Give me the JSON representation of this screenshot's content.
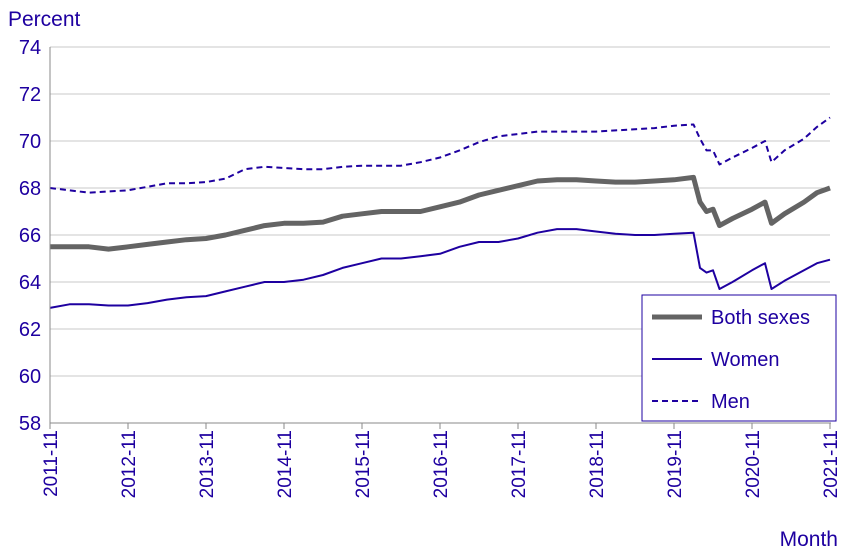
{
  "chart_data": {
    "type": "line",
    "ylabel": "Percent",
    "xlabel": "Month",
    "ylim": [
      58,
      74
    ],
    "yticks": [
      "58",
      "60",
      "62",
      "64",
      "66",
      "68",
      "70",
      "72",
      "74"
    ],
    "xlim": [
      "2011-11",
      "2021-11"
    ],
    "xticks": [
      "2011-11",
      "2012-11",
      "2013-11",
      "2014-11",
      "2015-11",
      "2016-11",
      "2017-11",
      "2018-11",
      "2019-11",
      "2020-11",
      "2021-11"
    ],
    "grid": "horizontal",
    "legend_position": "bottom-right",
    "series": [
      {
        "name": "Both sexes",
        "color": "#646464",
        "style": "solid-thick",
        "points": [
          [
            "2011-11",
            65.5
          ],
          [
            "2012-02",
            65.5
          ],
          [
            "2012-05",
            65.5
          ],
          [
            "2012-08",
            65.4
          ],
          [
            "2012-11",
            65.5
          ],
          [
            "2013-02",
            65.6
          ],
          [
            "2013-05",
            65.7
          ],
          [
            "2013-08",
            65.8
          ],
          [
            "2013-11",
            65.85
          ],
          [
            "2014-02",
            66.0
          ],
          [
            "2014-05",
            66.2
          ],
          [
            "2014-08",
            66.4
          ],
          [
            "2014-11",
            66.5
          ],
          [
            "2015-02",
            66.5
          ],
          [
            "2015-05",
            66.55
          ],
          [
            "2015-08",
            66.8
          ],
          [
            "2015-11",
            66.9
          ],
          [
            "2016-02",
            67.0
          ],
          [
            "2016-05",
            67.0
          ],
          [
            "2016-08",
            67.0
          ],
          [
            "2016-11",
            67.2
          ],
          [
            "2017-02",
            67.4
          ],
          [
            "2017-05",
            67.7
          ],
          [
            "2017-08",
            67.9
          ],
          [
            "2017-11",
            68.1
          ],
          [
            "2018-02",
            68.3
          ],
          [
            "2018-05",
            68.35
          ],
          [
            "2018-08",
            68.35
          ],
          [
            "2018-11",
            68.3
          ],
          [
            "2019-02",
            68.25
          ],
          [
            "2019-05",
            68.25
          ],
          [
            "2019-08",
            68.3
          ],
          [
            "2019-11",
            68.35
          ],
          [
            "2020-02",
            68.45
          ],
          [
            "2020-03",
            67.4
          ],
          [
            "2020-04",
            67.0
          ],
          [
            "2020-05",
            67.1
          ],
          [
            "2020-06",
            66.4
          ],
          [
            "2020-08",
            66.7
          ],
          [
            "2020-11",
            67.1
          ],
          [
            "2021-01",
            67.4
          ],
          [
            "2021-02",
            66.5
          ],
          [
            "2021-04",
            66.9
          ],
          [
            "2021-07",
            67.4
          ],
          [
            "2021-09",
            67.8
          ],
          [
            "2021-11",
            68.0
          ]
        ]
      },
      {
        "name": "Women",
        "color": "#1e00a0",
        "style": "solid",
        "points": [
          [
            "2011-11",
            62.9
          ],
          [
            "2012-02",
            63.05
          ],
          [
            "2012-05",
            63.05
          ],
          [
            "2012-08",
            63.0
          ],
          [
            "2012-11",
            63.0
          ],
          [
            "2013-02",
            63.1
          ],
          [
            "2013-05",
            63.25
          ],
          [
            "2013-08",
            63.35
          ],
          [
            "2013-11",
            63.4
          ],
          [
            "2014-02",
            63.6
          ],
          [
            "2014-05",
            63.8
          ],
          [
            "2014-08",
            64.0
          ],
          [
            "2014-11",
            64.0
          ],
          [
            "2015-02",
            64.1
          ],
          [
            "2015-05",
            64.3
          ],
          [
            "2015-08",
            64.6
          ],
          [
            "2015-11",
            64.8
          ],
          [
            "2016-02",
            65.0
          ],
          [
            "2016-05",
            65.0
          ],
          [
            "2016-08",
            65.1
          ],
          [
            "2016-11",
            65.2
          ],
          [
            "2017-02",
            65.5
          ],
          [
            "2017-05",
            65.7
          ],
          [
            "2017-08",
            65.7
          ],
          [
            "2017-11",
            65.85
          ],
          [
            "2018-02",
            66.1
          ],
          [
            "2018-05",
            66.25
          ],
          [
            "2018-08",
            66.25
          ],
          [
            "2018-11",
            66.15
          ],
          [
            "2019-02",
            66.05
          ],
          [
            "2019-05",
            66.0
          ],
          [
            "2019-08",
            66.0
          ],
          [
            "2019-11",
            66.05
          ],
          [
            "2020-02",
            66.1
          ],
          [
            "2020-03",
            64.6
          ],
          [
            "2020-04",
            64.4
          ],
          [
            "2020-05",
            64.5
          ],
          [
            "2020-06",
            63.7
          ],
          [
            "2020-08",
            64.0
          ],
          [
            "2020-11",
            64.5
          ],
          [
            "2021-01",
            64.8
          ],
          [
            "2021-02",
            63.7
          ],
          [
            "2021-04",
            64.05
          ],
          [
            "2021-07",
            64.5
          ],
          [
            "2021-09",
            64.8
          ],
          [
            "2021-11",
            64.95
          ]
        ]
      },
      {
        "name": "Men",
        "color": "#1e00a0",
        "style": "dashed",
        "points": [
          [
            "2011-11",
            68.0
          ],
          [
            "2012-02",
            67.9
          ],
          [
            "2012-05",
            67.8
          ],
          [
            "2012-08",
            67.85
          ],
          [
            "2012-11",
            67.9
          ],
          [
            "2013-02",
            68.05
          ],
          [
            "2013-05",
            68.2
          ],
          [
            "2013-08",
            68.2
          ],
          [
            "2013-11",
            68.25
          ],
          [
            "2014-02",
            68.4
          ],
          [
            "2014-05",
            68.8
          ],
          [
            "2014-08",
            68.9
          ],
          [
            "2014-11",
            68.85
          ],
          [
            "2015-02",
            68.8
          ],
          [
            "2015-05",
            68.8
          ],
          [
            "2015-08",
            68.9
          ],
          [
            "2015-11",
            68.95
          ],
          [
            "2016-02",
            68.95
          ],
          [
            "2016-05",
            68.95
          ],
          [
            "2016-08",
            69.1
          ],
          [
            "2016-11",
            69.3
          ],
          [
            "2017-02",
            69.6
          ],
          [
            "2017-05",
            69.95
          ],
          [
            "2017-08",
            70.2
          ],
          [
            "2017-11",
            70.3
          ],
          [
            "2018-02",
            70.4
          ],
          [
            "2018-05",
            70.4
          ],
          [
            "2018-08",
            70.4
          ],
          [
            "2018-11",
            70.4
          ],
          [
            "2019-02",
            70.45
          ],
          [
            "2019-05",
            70.5
          ],
          [
            "2019-08",
            70.55
          ],
          [
            "2019-11",
            70.65
          ],
          [
            "2020-02",
            70.7
          ],
          [
            "2020-03",
            70.1
          ],
          [
            "2020-04",
            69.6
          ],
          [
            "2020-05",
            69.6
          ],
          [
            "2020-06",
            69.0
          ],
          [
            "2020-08",
            69.3
          ],
          [
            "2020-11",
            69.7
          ],
          [
            "2021-01",
            70.0
          ],
          [
            "2021-02",
            69.1
          ],
          [
            "2021-04",
            69.6
          ],
          [
            "2021-07",
            70.1
          ],
          [
            "2021-09",
            70.6
          ],
          [
            "2021-11",
            71.0
          ]
        ]
      }
    ]
  }
}
